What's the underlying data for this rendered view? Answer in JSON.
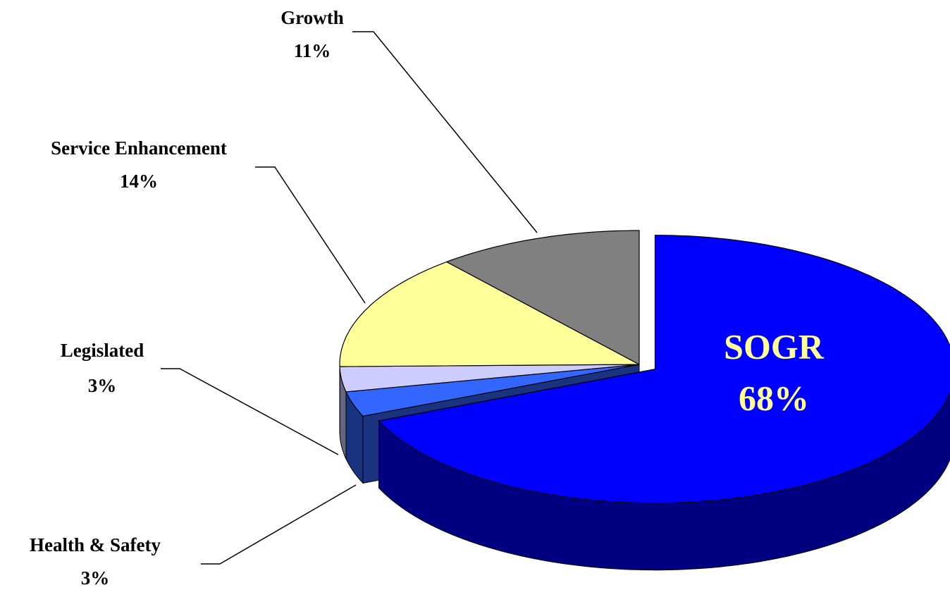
{
  "chart_data": {
    "type": "pie",
    "categories": [
      "SOGR",
      "Health & Safety",
      "Legislated",
      "Service Enhancement",
      "Growth"
    ],
    "values": [
      68,
      3,
      3,
      14,
      11
    ],
    "value_labels": [
      "68%",
      "3%",
      "3%",
      "14%",
      "11%"
    ],
    "colors": [
      "#0000ff",
      "#3366ff",
      "#ccccff",
      "#ffff99",
      "#808080"
    ],
    "explode": [
      true,
      false,
      false,
      false,
      false
    ]
  }
}
